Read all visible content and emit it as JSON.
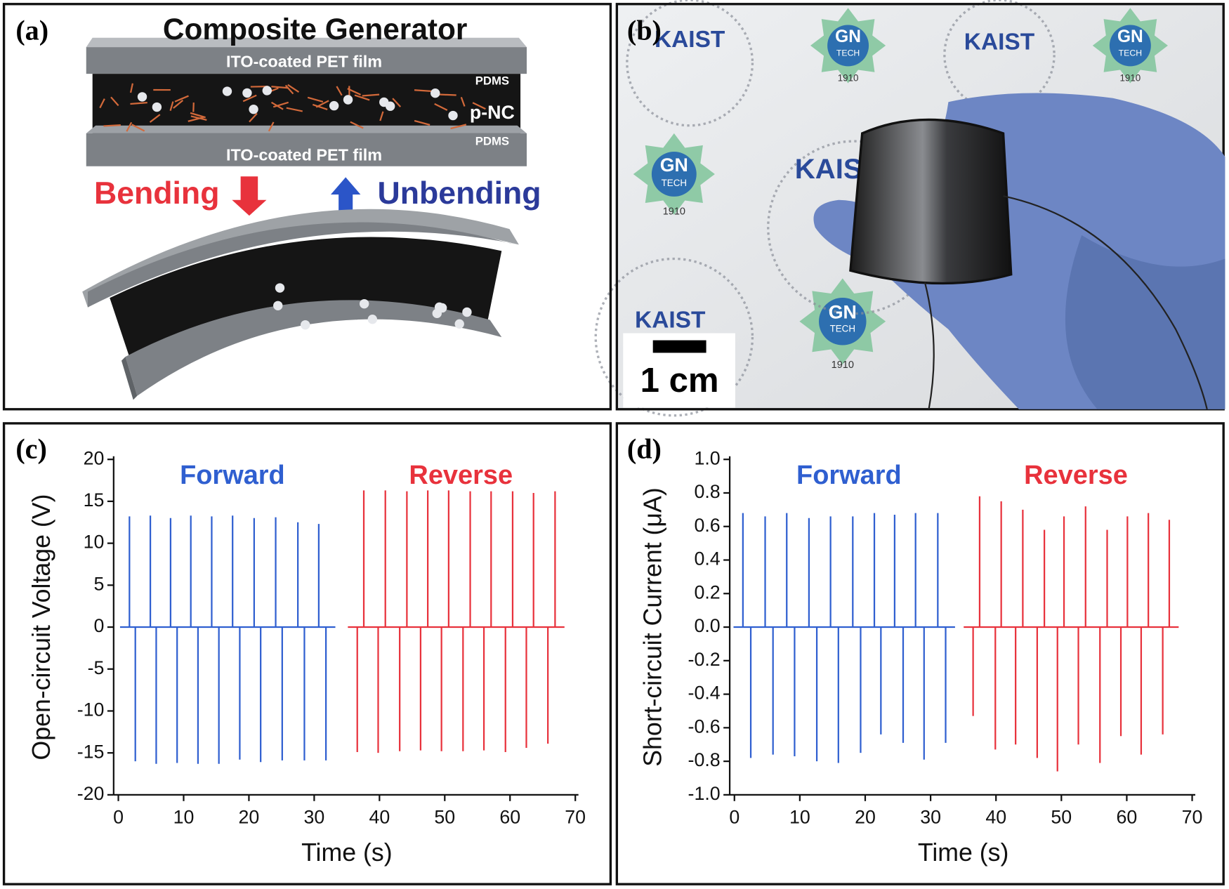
{
  "panels": {
    "a": {
      "label": "(a)",
      "title": "Composite Generator",
      "top_film": "ITO-coated PET film",
      "bottom_film": "ITO-coated PET film",
      "top_pdms": "PDMS",
      "bottom_pdms": "PDMS",
      "filler": "p-NC",
      "bending": "Bending",
      "unbending": "Unbending"
    },
    "b": {
      "label": "(b)",
      "kaist": "KAIST",
      "gn": "GN",
      "tech": "TECH",
      "year": "1910",
      "scale_bar": "1 cm"
    }
  },
  "chart_data": [
    {
      "type": "spike",
      "panel_label": "(c)",
      "xlabel": "Time (s)",
      "ylabel": "Open-circuit Voltage (V)",
      "xlim": [
        0,
        70
      ],
      "xticks": [
        0,
        10,
        20,
        30,
        40,
        50,
        60,
        70
      ],
      "ylim": [
        -20,
        20
      ],
      "yticks": [
        -20,
        -15,
        -10,
        -5,
        0,
        5,
        10,
        15,
        20
      ],
      "series": [
        {
          "name": "Forward",
          "color": "#2f5fd0",
          "x": [
            1.7,
            2.6,
            4.9,
            5.8,
            8.0,
            9.0,
            11.1,
            12.2,
            14.3,
            15.4,
            17.5,
            18.6,
            20.8,
            21.8,
            24.1,
            25.1,
            27.5,
            28.5,
            30.7,
            31.8
          ],
          "values": [
            13.2,
            -16.0,
            13.3,
            -16.3,
            13.0,
            -16.2,
            13.3,
            -16.3,
            13.2,
            -16.3,
            13.3,
            -15.8,
            13.0,
            -16.1,
            13.1,
            -15.9,
            12.5,
            -15.9,
            12.3,
            -15.9
          ]
        },
        {
          "name": "Reverse",
          "color": "#e8323c",
          "x": [
            36.6,
            37.6,
            39.8,
            40.9,
            43.1,
            44.2,
            46.3,
            47.4,
            49.5,
            50.6,
            52.8,
            53.9,
            56.0,
            57.1,
            59.3,
            60.4,
            62.5,
            63.6,
            65.8,
            66.9
          ],
          "values": [
            -14.9,
            16.3,
            -15.0,
            16.3,
            -14.8,
            16.2,
            -14.7,
            16.3,
            -14.8,
            16.3,
            -14.8,
            16.2,
            -14.7,
            16.2,
            -14.9,
            16.2,
            -14.4,
            16.0,
            -13.9,
            16.2
          ]
        }
      ]
    },
    {
      "type": "spike",
      "panel_label": "(d)",
      "xlabel": "Time (s)",
      "ylabel": "Short-circuit Current (μA)",
      "xlim": [
        0,
        70
      ],
      "xticks": [
        0,
        10,
        20,
        30,
        40,
        50,
        60,
        70
      ],
      "ylim": [
        -1.0,
        1.0
      ],
      "yticks": [
        {
          "value": -1.0,
          "label": "-1.0"
        },
        -0.8,
        -0.6,
        -0.4,
        -0.2,
        {
          "value": 0.0,
          "label": "0.0"
        },
        0.2,
        0.4,
        0.6,
        0.8,
        {
          "value": 1.0,
          "label": "1.0"
        }
      ],
      "series": [
        {
          "name": "Forward",
          "color": "#2f5fd0",
          "x": [
            1.3,
            2.5,
            4.7,
            5.9,
            8.0,
            9.2,
            11.4,
            12.6,
            14.7,
            15.9,
            18.1,
            19.3,
            21.4,
            22.4,
            24.5,
            25.8,
            27.7,
            29.0,
            31.1,
            32.3
          ],
          "values": [
            0.68,
            -0.78,
            0.66,
            -0.76,
            0.68,
            -0.77,
            0.65,
            -0.8,
            0.66,
            -0.81,
            0.66,
            -0.75,
            0.68,
            -0.64,
            0.67,
            -0.69,
            0.68,
            -0.79,
            0.68,
            -0.69
          ]
        },
        {
          "name": "Reverse",
          "color": "#e8323c",
          "x": [
            36.5,
            37.5,
            39.9,
            40.8,
            43.0,
            44.1,
            46.3,
            47.4,
            49.4,
            50.4,
            52.6,
            53.7,
            55.9,
            57.0,
            59.1,
            60.1,
            62.2,
            63.3,
            65.5,
            66.5
          ],
          "values": [
            -0.53,
            0.78,
            -0.73,
            0.75,
            -0.7,
            0.7,
            -0.78,
            0.58,
            -0.86,
            0.66,
            -0.7,
            0.72,
            -0.81,
            0.58,
            -0.65,
            0.66,
            -0.76,
            0.68,
            -0.64,
            0.64
          ]
        }
      ]
    }
  ]
}
